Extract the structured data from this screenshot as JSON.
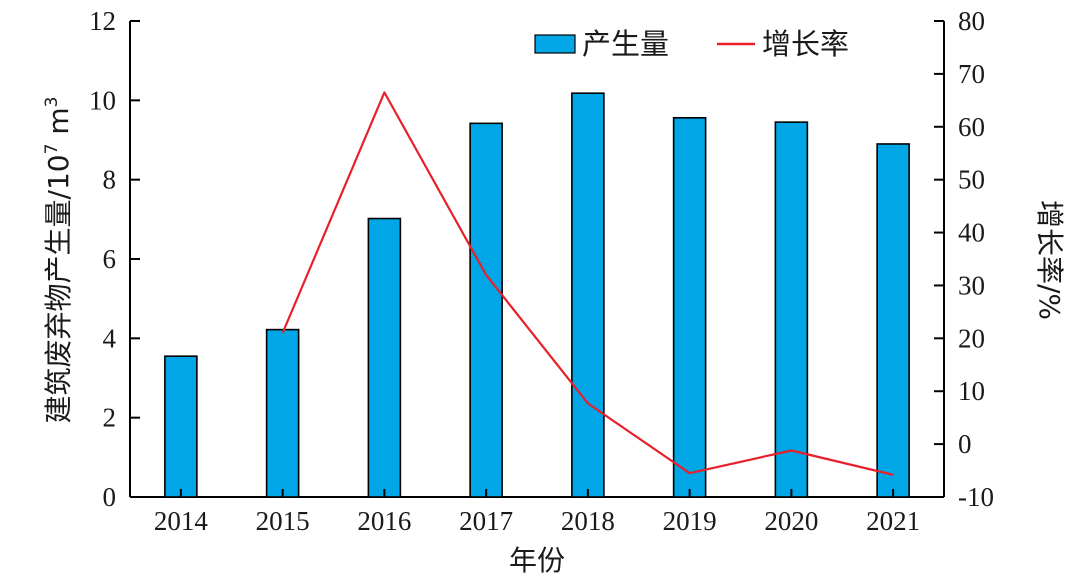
{
  "chart_data": {
    "type": "bar+line",
    "categories": [
      "2014",
      "2015",
      "2016",
      "2017",
      "2018",
      "2019",
      "2020",
      "2021"
    ],
    "xlabel": "年份",
    "ylabel_left": "建筑废弃物产生量/10",
    "ylabel_left_exp": "7",
    "ylabel_left_unit": " m",
    "ylabel_left_unit_exp": "3",
    "ylabel_right": "增长率/%",
    "ylim_left": [
      0,
      12
    ],
    "ylim_right": [
      -10,
      80
    ],
    "yticks_left": [
      0,
      2,
      4,
      6,
      8,
      10,
      12
    ],
    "yticks_right": [
      -10,
      0,
      10,
      20,
      30,
      40,
      50,
      60,
      70,
      80
    ],
    "ytick_labels_right": [
      "-10",
      "0",
      "10",
      "20",
      "30",
      "40",
      "50",
      "60",
      "70",
      "80"
    ],
    "grid": false,
    "legend_position": "top-right",
    "series": [
      {
        "name": "产生量",
        "type": "bar",
        "axis": "left",
        "color": "#00A6E6",
        "values": [
          3.55,
          4.22,
          7.02,
          9.42,
          10.18,
          9.56,
          9.45,
          8.9
        ]
      },
      {
        "name": "增长率",
        "type": "line",
        "axis": "right",
        "color": "#E8202A",
        "x": [
          "2015",
          "2016",
          "2017",
          "2018",
          "2019",
          "2020",
          "2021"
        ],
        "values": [
          21.0,
          66.5,
          32.0,
          7.7,
          -5.5,
          -1.2,
          -5.8
        ]
      }
    ]
  }
}
